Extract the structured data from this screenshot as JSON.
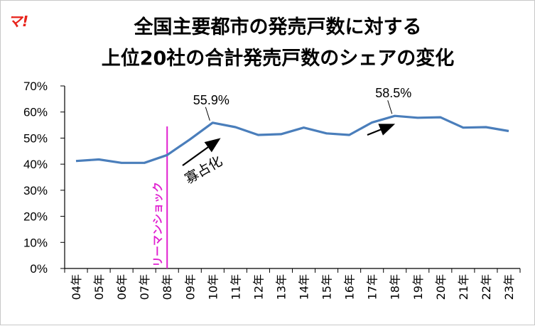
{
  "logo_text": "マ!",
  "colors": {
    "line": "#4a7ebb",
    "marker": "#e020d0",
    "logo": "#e8241c"
  },
  "chart_data": {
    "type": "line",
    "title": [
      "全国主要都市の発売戸数に対する",
      "上位20社の合計発売戸数のシェアの変化"
    ],
    "xlabel": "",
    "ylabel": "",
    "categories": [
      "04年",
      "05年",
      "06年",
      "07年",
      "08年",
      "09年",
      "10年",
      "11年",
      "12年",
      "13年",
      "14年",
      "15年",
      "16年",
      "17年",
      "18年",
      "19年",
      "20年",
      "21年",
      "22年",
      "23年"
    ],
    "ylim": [
      0,
      70
    ],
    "ytick_labels": [
      "0%",
      "10%",
      "20%",
      "30%",
      "40%",
      "50%",
      "60%",
      "70%"
    ],
    "grid": false,
    "legend": "none",
    "series": [
      {
        "values": [
          41.2,
          41.8,
          40.5,
          40.5,
          43.5,
          49.5,
          55.9,
          54.2,
          51.2,
          51.5,
          54.0,
          51.8,
          51.2,
          56.0,
          58.5,
          57.8,
          58.0,
          54.0,
          54.2,
          52.7
        ]
      }
    ],
    "data_labels": [
      {
        "index": 6,
        "text": "55.9%"
      },
      {
        "index": 14,
        "text": "58.5%"
      }
    ],
    "annotations": {
      "event_label": "リーマンショック",
      "trend_label": "寡占化"
    }
  }
}
